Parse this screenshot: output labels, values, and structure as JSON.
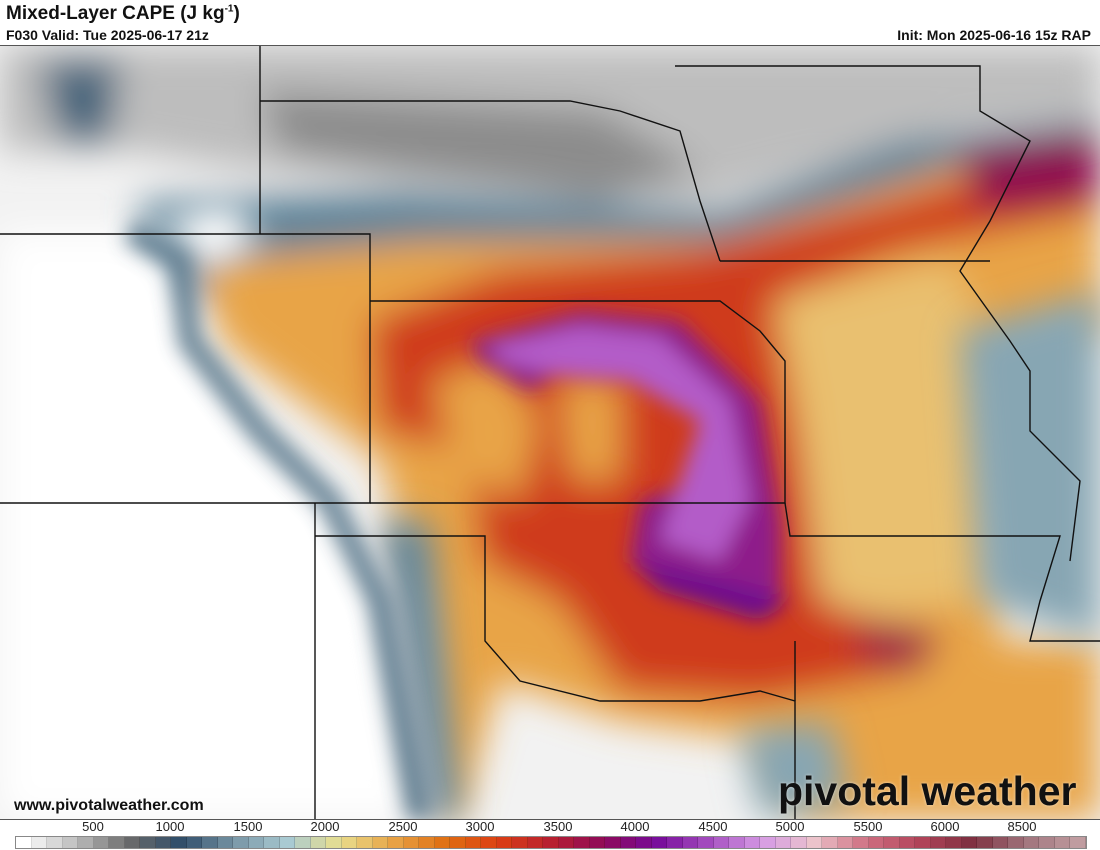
{
  "header": {
    "title": "Mixed-Layer CAPE (J kg",
    "title_sup": "-1",
    "title_end": ")",
    "valid": "F030 Valid: Tue 2025-06-17 21z",
    "init": "Init: Mon 2025-06-16 15z RAP"
  },
  "footer": {
    "website": "www.pivotalweather.com",
    "logo": "pivotal weather"
  },
  "colorbar": {
    "labels": [
      "500",
      "1000",
      "1500",
      "2000",
      "2500",
      "3000",
      "3500",
      "4000",
      "4500",
      "5000",
      "5500",
      "6000",
      "8500"
    ],
    "anchor_colors": [
      "#ffffff",
      "#bdbdbd",
      "#6a6a6a",
      "#2f4d6a",
      "#7896a6",
      "#a9cad2",
      "#e9de8d",
      "#e8a447",
      "#e06f12",
      "#dc3f14",
      "#b82030",
      "#8e0a5a",
      "#760b9a",
      "#a54dbf",
      "#d59ae5",
      "#ecc3cb",
      "#cf6f81",
      "#b3445a",
      "#7e3040",
      "#a0737c",
      "#c09ca0"
    ]
  },
  "map": {
    "product": "Mixed-Layer CAPE",
    "colors": {
      "low": "#ffffff",
      "moderate": "#5a7f96",
      "high": "#e8a447",
      "very_high": "#c8301f",
      "extreme": "#9a3fbf"
    }
  }
}
